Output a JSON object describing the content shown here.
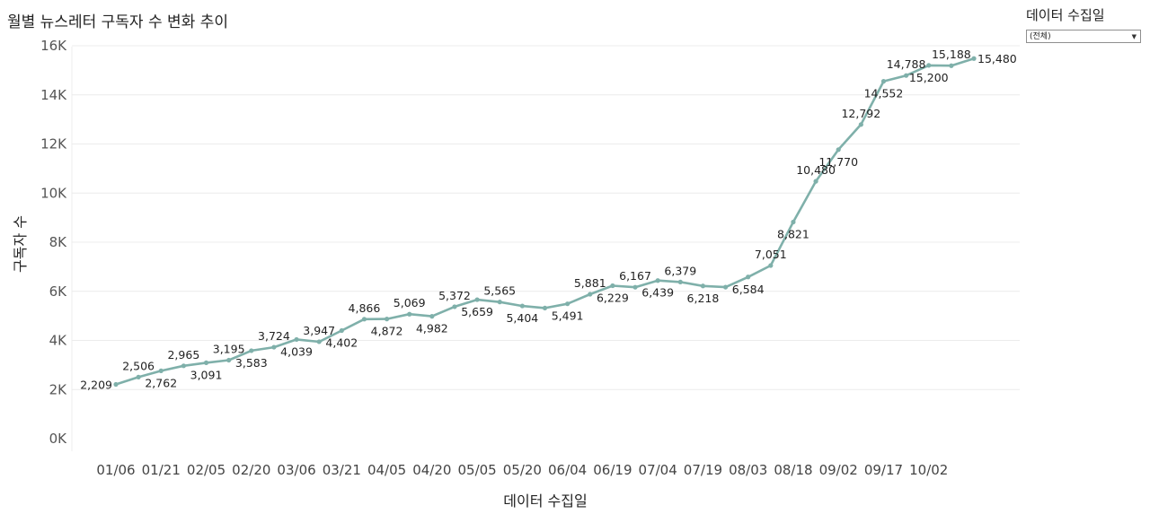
{
  "title": "월별 뉴스레터 구독자 수 변화 추이",
  "filter": {
    "title": "데이터 수집일",
    "selected": "(전체)",
    "arrow_icon": "chevron-down-icon"
  },
  "colors": {
    "line": "#7fb0aa",
    "grid": "#ececec"
  },
  "chart_data": {
    "type": "line",
    "title": "월별 뉴스레터 구독자 수 변화 추이",
    "xlabel": "데이터 수집일",
    "ylabel": "구독자 수",
    "ylim": [
      0,
      16000
    ],
    "yticks": [
      0,
      2000,
      4000,
      6000,
      8000,
      10000,
      12000,
      14000,
      16000
    ],
    "ytick_labels": [
      "0K",
      "2K",
      "4K",
      "6K",
      "8K",
      "10K",
      "12K",
      "14K",
      "16K"
    ],
    "xtick_labels": [
      "01/06",
      "01/21",
      "02/05",
      "02/20",
      "03/06",
      "03/21",
      "04/05",
      "04/20",
      "05/05",
      "05/20",
      "06/04",
      "06/19",
      "07/04",
      "07/19",
      "08/03",
      "08/18",
      "09/02",
      "09/17",
      "10/02"
    ],
    "grid": true,
    "series": [
      {
        "values": [
          2209,
          2506,
          2762,
          2965,
          3091,
          3195,
          3583,
          3724,
          4039,
          3947,
          4402,
          4866,
          4872,
          5069,
          4982,
          5372,
          5659,
          5565,
          5404,
          5320,
          5491,
          5881,
          6229,
          6167,
          6439,
          6379,
          6218,
          6170,
          6584,
          7051,
          8821,
          10480,
          11770,
          12792,
          14552,
          14788,
          15200,
          15188,
          15480
        ],
        "labels": [
          "2,209",
          "2,506",
          "2,762",
          "2,965",
          "3,091",
          "3,195",
          "3,583",
          "3,724",
          "4,039",
          "3,947",
          "4,402",
          "4,866",
          "4,872",
          "5,069",
          "4,982",
          "5,372",
          "5,659",
          "5,565",
          "5,404",
          "",
          "5,491",
          "5,881",
          "6,229",
          "6,167",
          "6,439",
          "6,379",
          "6,218",
          "",
          "6,584",
          "7,051",
          "8,821",
          "10,480",
          "11,770",
          "12,792",
          "14,552",
          "14,788",
          "15,200",
          "15,188",
          "15,480"
        ]
      }
    ]
  }
}
